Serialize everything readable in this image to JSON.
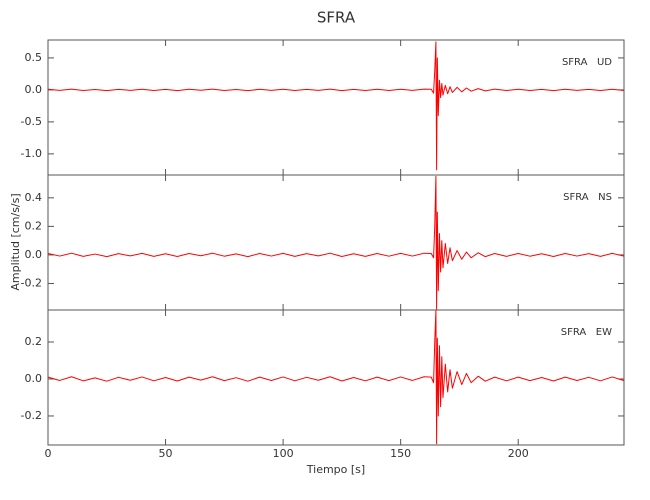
{
  "chart_data": [
    {
      "type": "line",
      "title": "SFRA",
      "panel_label": "SFRA   UD",
      "color": "#ff0000",
      "xlim": [
        0,
        245
      ],
      "xticks": [
        0,
        50,
        100,
        150,
        200
      ],
      "ylim": [
        -1.33,
        0.78
      ],
      "yticks": [
        {
          "value": -1.0,
          "label": "-1.0"
        },
        {
          "value": -0.5,
          "label": "-0.5"
        },
        {
          "value": 0.0,
          "label": "0.0"
        },
        {
          "value": 0.5,
          "label": "0.5"
        }
      ],
      "x": [
        0,
        5,
        10,
        15,
        20,
        25,
        30,
        35,
        40,
        45,
        50,
        55,
        60,
        65,
        70,
        75,
        80,
        85,
        90,
        95,
        100,
        105,
        110,
        115,
        120,
        125,
        130,
        135,
        140,
        145,
        150,
        155,
        160,
        163,
        164,
        164.5,
        165,
        165.3,
        165.6,
        166,
        166.5,
        167,
        167.5,
        168,
        169,
        170,
        171,
        172,
        174,
        176,
        178,
        180,
        183,
        186,
        190,
        195,
        200,
        205,
        210,
        215,
        220,
        225,
        230,
        235,
        240,
        245
      ],
      "values": [
        0.01,
        -0.008,
        0.012,
        -0.01,
        0.006,
        -0.012,
        0.009,
        -0.007,
        0.011,
        -0.01,
        0.008,
        -0.011,
        0.01,
        -0.006,
        0.012,
        -0.009,
        0.007,
        -0.012,
        0.01,
        -0.008,
        0.011,
        -0.01,
        0.009,
        -0.007,
        0.012,
        -0.011,
        0.008,
        -0.01,
        0.01,
        -0.009,
        0.011,
        -0.008,
        0.012,
        0.01,
        -0.05,
        0.3,
        0.75,
        -1.25,
        0.5,
        -0.4,
        0.15,
        -0.12,
        0.1,
        -0.08,
        0.07,
        -0.06,
        0.05,
        -0.04,
        0.04,
        -0.03,
        0.03,
        -0.02,
        0.02,
        -0.015,
        0.012,
        -0.01,
        0.01,
        -0.009,
        0.008,
        -0.011,
        0.01,
        -0.008,
        0.009,
        -0.01,
        0.011,
        -0.009
      ]
    },
    {
      "type": "line",
      "ylabel": "Amplitud [cm/s/s]",
      "panel_label": "SFRA   NS",
      "color": "#ff0000",
      "xlim": [
        0,
        245
      ],
      "xticks": [
        0,
        50,
        100,
        150,
        200
      ],
      "ylim": [
        -0.386,
        0.56
      ],
      "yticks": [
        {
          "value": -0.2,
          "label": "-0.2"
        },
        {
          "value": 0.0,
          "label": "0.0"
        },
        {
          "value": 0.2,
          "label": "0.2"
        },
        {
          "value": 0.4,
          "label": "0.4"
        }
      ],
      "x": [
        0,
        5,
        10,
        15,
        20,
        25,
        30,
        35,
        40,
        45,
        50,
        55,
        60,
        65,
        70,
        75,
        80,
        85,
        90,
        95,
        100,
        105,
        110,
        115,
        120,
        125,
        130,
        135,
        140,
        145,
        150,
        155,
        160,
        163,
        164,
        164.5,
        165,
        165.3,
        165.6,
        166,
        166.5,
        167,
        167.5,
        168,
        169,
        170,
        171,
        172,
        174,
        176,
        178,
        180,
        183,
        186,
        190,
        195,
        200,
        205,
        210,
        215,
        220,
        225,
        230,
        235,
        240,
        245
      ],
      "values": [
        0.01,
        -0.008,
        0.012,
        -0.01,
        0.006,
        -0.012,
        0.009,
        -0.007,
        0.011,
        -0.01,
        0.008,
        -0.011,
        0.01,
        -0.006,
        0.012,
        -0.009,
        0.007,
        -0.012,
        0.01,
        -0.008,
        0.011,
        -0.01,
        0.009,
        -0.007,
        0.012,
        -0.011,
        0.008,
        -0.01,
        0.01,
        -0.009,
        0.011,
        -0.008,
        0.012,
        0.01,
        -0.02,
        0.2,
        0.55,
        -0.38,
        0.3,
        -0.25,
        0.15,
        -0.12,
        0.1,
        -0.09,
        0.08,
        -0.06,
        0.05,
        -0.04,
        0.03,
        -0.03,
        0.02,
        -0.02,
        0.015,
        -0.012,
        0.01,
        -0.01,
        0.01,
        -0.009,
        0.008,
        -0.011,
        0.01,
        -0.008,
        0.009,
        -0.01,
        0.011,
        -0.009
      ]
    },
    {
      "type": "line",
      "xlabel": "Tiempo [s]",
      "panel_label": "SFRA   EW",
      "color": "#ff0000",
      "xlim": [
        0,
        245
      ],
      "xticks": [
        0,
        50,
        100,
        150,
        200
      ],
      "ylim": [
        -0.357,
        0.373
      ],
      "yticks": [
        {
          "value": -0.2,
          "label": "-0.2"
        },
        {
          "value": 0.0,
          "label": "0.0"
        },
        {
          "value": 0.2,
          "label": "0.2"
        }
      ],
      "x": [
        0,
        5,
        10,
        15,
        20,
        25,
        30,
        35,
        40,
        45,
        50,
        55,
        60,
        65,
        70,
        75,
        80,
        85,
        90,
        95,
        100,
        105,
        110,
        115,
        120,
        125,
        130,
        135,
        140,
        145,
        150,
        155,
        160,
        163,
        164,
        164.5,
        165,
        165.3,
        165.6,
        166,
        166.5,
        167,
        167.5,
        168,
        169,
        170,
        171,
        172,
        174,
        176,
        178,
        180,
        183,
        186,
        190,
        195,
        200,
        205,
        210,
        215,
        220,
        225,
        230,
        235,
        240,
        245
      ],
      "values": [
        0.01,
        -0.008,
        0.012,
        -0.01,
        0.006,
        -0.012,
        0.009,
        -0.007,
        0.011,
        -0.01,
        0.008,
        -0.011,
        0.01,
        -0.006,
        0.012,
        -0.009,
        0.007,
        -0.012,
        0.01,
        -0.008,
        0.011,
        -0.01,
        0.009,
        -0.007,
        0.012,
        -0.011,
        0.008,
        -0.01,
        0.01,
        -0.009,
        0.011,
        -0.008,
        0.012,
        0.01,
        -0.02,
        0.2,
        0.37,
        -0.35,
        0.22,
        -0.2,
        0.18,
        -0.15,
        0.12,
        -0.1,
        0.08,
        -0.07,
        0.05,
        -0.05,
        0.04,
        -0.03,
        0.03,
        -0.02,
        0.015,
        -0.012,
        0.01,
        -0.01,
        0.01,
        -0.009,
        0.008,
        -0.011,
        0.01,
        -0.008,
        0.009,
        -0.01,
        0.011,
        -0.009
      ]
    }
  ]
}
